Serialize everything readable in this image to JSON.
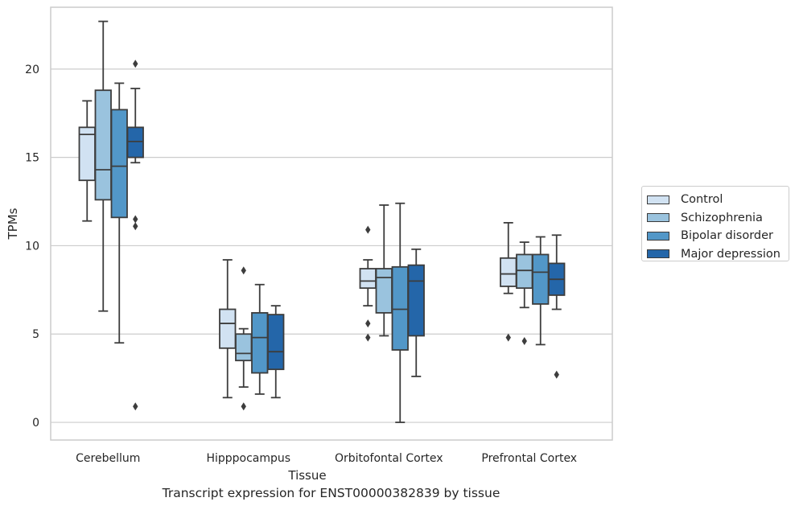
{
  "caption": "Transcript expression for ENST00000382839 by tissue",
  "chart_data": {
    "type": "box",
    "title": "",
    "xlabel": "Tissue",
    "ylabel": "TPMs",
    "ylim": [
      -1,
      23.5
    ],
    "yticks": [
      0,
      5,
      10,
      15,
      20
    ],
    "grid": "horizontal",
    "legend_position": "right",
    "categories": [
      "Cerebellum",
      "Hipppocampus",
      "Orbitofontal Cortex",
      "Prefrontal Cortex"
    ],
    "series": [
      {
        "name": "Control",
        "color": "#d1e2f2",
        "boxes": [
          {
            "whislo": 11.4,
            "q1": 13.7,
            "med": 16.3,
            "q3": 16.7,
            "whishi": 18.2,
            "fliers": []
          },
          {
            "whislo": 1.4,
            "q1": 4.2,
            "med": 5.6,
            "q3": 6.4,
            "whishi": 9.2,
            "fliers": []
          },
          {
            "whislo": 6.6,
            "q1": 7.6,
            "med": 8.0,
            "q3": 8.7,
            "whishi": 9.2,
            "fliers": [
              10.9,
              5.6,
              4.8
            ]
          },
          {
            "whislo": 7.3,
            "q1": 7.7,
            "med": 8.4,
            "q3": 9.3,
            "whishi": 11.3,
            "fliers": [
              4.8
            ]
          }
        ]
      },
      {
        "name": "Schizophrenia",
        "color": "#9ac3de",
        "boxes": [
          {
            "whislo": 6.3,
            "q1": 12.6,
            "med": 14.3,
            "q3": 18.8,
            "whishi": 22.7,
            "fliers": []
          },
          {
            "whislo": 2.0,
            "q1": 3.5,
            "med": 3.9,
            "q3": 5.0,
            "whishi": 5.3,
            "fliers": [
              8.6,
              0.9
            ]
          },
          {
            "whislo": 4.9,
            "q1": 6.2,
            "med": 8.2,
            "q3": 8.7,
            "whishi": 12.3,
            "fliers": []
          },
          {
            "whislo": 6.5,
            "q1": 7.6,
            "med": 8.6,
            "q3": 9.5,
            "whishi": 10.2,
            "fliers": [
              4.6
            ]
          }
        ]
      },
      {
        "name": "Bipolar disorder",
        "color": "#5297c8",
        "boxes": [
          {
            "whislo": 4.5,
            "q1": 11.6,
            "med": 14.5,
            "q3": 17.7,
            "whishi": 19.2,
            "fliers": []
          },
          {
            "whislo": 1.6,
            "q1": 2.8,
            "med": 4.8,
            "q3": 6.2,
            "whishi": 7.8,
            "fliers": []
          },
          {
            "whislo": 0.0,
            "q1": 4.1,
            "med": 6.4,
            "q3": 8.8,
            "whishi": 12.4,
            "fliers": []
          },
          {
            "whislo": 4.4,
            "q1": 6.7,
            "med": 8.5,
            "q3": 9.5,
            "whishi": 10.5,
            "fliers": []
          }
        ]
      },
      {
        "name": "Major depression",
        "color": "#2466a9",
        "boxes": [
          {
            "whislo": 14.7,
            "q1": 15.0,
            "med": 15.9,
            "q3": 16.7,
            "whishi": 18.9,
            "fliers": [
              20.3,
              11.5,
              11.1,
              0.9
            ]
          },
          {
            "whislo": 1.4,
            "q1": 3.0,
            "med": 4.0,
            "q3": 6.1,
            "whishi": 6.6,
            "fliers": []
          },
          {
            "whislo": 2.6,
            "q1": 4.9,
            "med": 8.0,
            "q3": 8.9,
            "whishi": 9.8,
            "fliers": []
          },
          {
            "whislo": 6.4,
            "q1": 7.2,
            "med": 8.1,
            "q3": 9.0,
            "whishi": 10.6,
            "fliers": [
              2.7
            ]
          }
        ]
      }
    ]
  }
}
